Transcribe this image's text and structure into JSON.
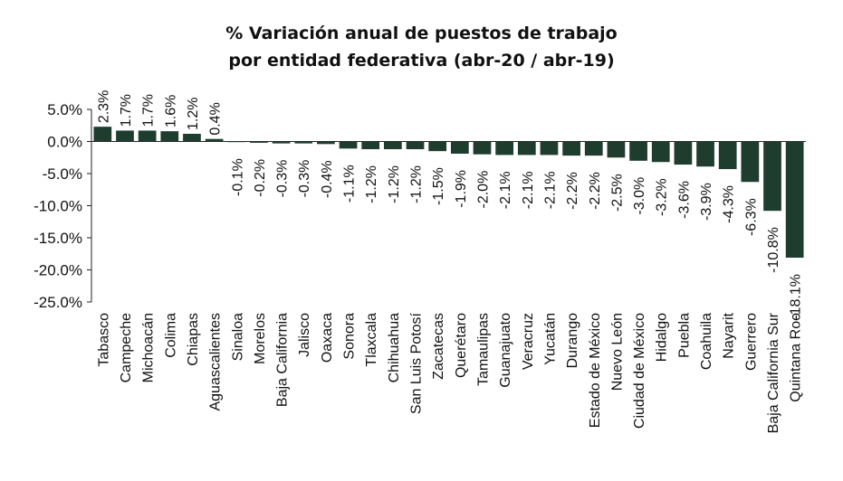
{
  "chart_data": {
    "type": "bar",
    "title_line1": "% Variación anual de puestos de trabajo",
    "title_line2": "por entidad federativa (abr-20 / abr-19)",
    "xlabel": "",
    "ylabel": "",
    "ylim": [
      -25,
      5
    ],
    "y_ticks": [
      "5.0%",
      "0.0%",
      "-5.0%",
      "-10.0%",
      "-15.0%",
      "-20.0%",
      "-25.0%"
    ],
    "bar_color": "#1f3d2e",
    "categories": [
      "Tabasco",
      "Campeche",
      "Michoacán",
      "Colima",
      "Chiapas",
      "Aguascalientes",
      "Sinaloa",
      "Morelos",
      "Baja California",
      "Jalisco",
      "Oaxaca",
      "Sonora",
      "Tlaxcala",
      "Chihuahua",
      "San Luis Potosí",
      "Zacatecas",
      "Querétaro",
      "Tamaulipas",
      "Guanajuato",
      "Veracruz",
      "Yucatán",
      "Durango",
      "Estado de México",
      "Nuevo León",
      "Ciudad de México",
      "Hidalgo",
      "Puebla",
      "Coahuila",
      "Nayarit",
      "Guerrero",
      "Baja California Sur",
      "Quintana Roo"
    ],
    "values": [
      2.3,
      1.7,
      1.7,
      1.6,
      1.2,
      0.4,
      -0.1,
      -0.2,
      -0.3,
      -0.3,
      -0.4,
      -1.1,
      -1.2,
      -1.2,
      -1.2,
      -1.5,
      -1.9,
      -2.0,
      -2.1,
      -2.1,
      -2.1,
      -2.2,
      -2.2,
      -2.5,
      -3.0,
      -3.2,
      -3.6,
      -3.9,
      -4.3,
      -6.3,
      -10.8,
      -18.1
    ],
    "value_labels": [
      "2.3%",
      "1.7%",
      "1.7%",
      "1.6%",
      "1.2%",
      "0.4%",
      "-0.1%",
      "-0.2%",
      "-0.3%",
      "-0.3%",
      "-0.4%",
      "-1.1%",
      "-1.2%",
      "-1.2%",
      "-1.2%",
      "-1.5%",
      "-1.9%",
      "-2.0%",
      "-2.1%",
      "-2.1%",
      "-2.1%",
      "-2.2%",
      "-2.2%",
      "-2.5%",
      "-3.0%",
      "-3.2%",
      "-3.6%",
      "-3.9%",
      "-4.3%",
      "-6.3%",
      "-10.8%",
      "-18.1%"
    ]
  }
}
